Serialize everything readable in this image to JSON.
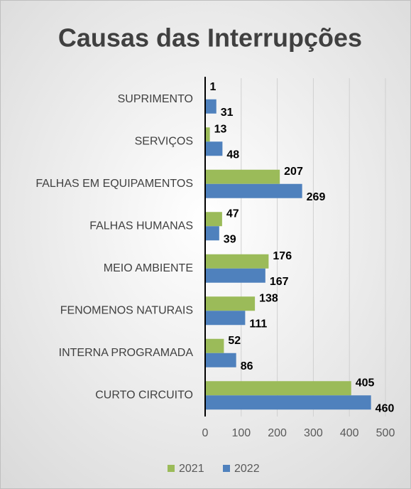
{
  "chart_data": {
    "type": "hbar",
    "title": "Causas das Interrupções",
    "categories": [
      "SUPRIMENTO",
      "SERVIÇOS",
      "FALHAS EM EQUIPAMENTOS",
      "FALHAS HUMANAS",
      "MEIO AMBIENTE",
      "FENOMENOS NATURAIS",
      "INTERNA PROGRAMADA",
      "CURTO CIRCUITO"
    ],
    "series": [
      {
        "name": "2021",
        "color": "#9bbb59",
        "values": [
          1,
          13,
          207,
          47,
          176,
          138,
          52,
          405
        ]
      },
      {
        "name": "2022",
        "color": "#4f81bd",
        "values": [
          31,
          48,
          269,
          39,
          167,
          111,
          86,
          460
        ]
      }
    ],
    "xlim": [
      0,
      500
    ],
    "xticks": [
      0,
      100,
      200,
      300,
      400,
      500
    ],
    "grid": true,
    "legend": "bottom"
  }
}
